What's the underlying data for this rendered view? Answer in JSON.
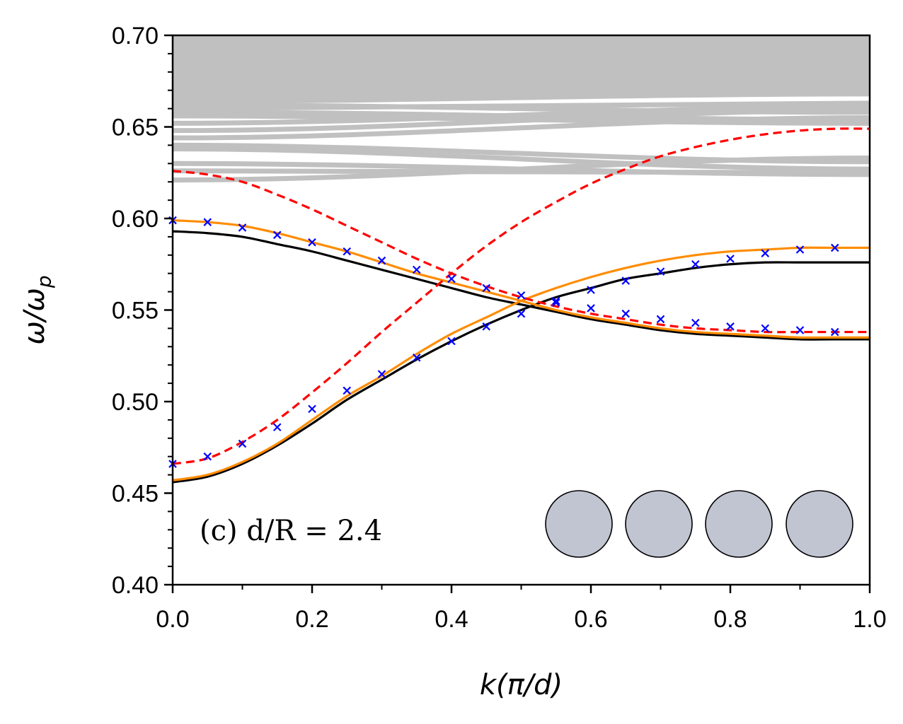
{
  "chart_data": {
    "type": "line",
    "title": "",
    "xlabel": "k(π/d)",
    "ylabel": "ω/ω_p",
    "ylabel_main": "ω/ω",
    "ylabel_sub": "p",
    "xlim": [
      0.0,
      1.0
    ],
    "ylim": [
      0.4,
      0.7
    ],
    "x_ticks": [
      "0.0",
      "0.2",
      "0.4",
      "0.6",
      "0.8",
      "1.0"
    ],
    "y_ticks": [
      "0.40",
      "0.45",
      "0.50",
      "0.55",
      "0.60",
      "0.65",
      "0.70"
    ],
    "x_tick_values": [
      0.0,
      0.2,
      0.4,
      0.6,
      0.8,
      1.0
    ],
    "y_tick_values": [
      0.4,
      0.45,
      0.5,
      0.55,
      0.6,
      0.65,
      0.7
    ],
    "annotation": "(c) d/R = 2.4",
    "grid": false,
    "background_bands": {
      "color": "#c0c0c0",
      "ymin": 0.618,
      "ymax": 0.7,
      "dense_above": 0.667,
      "band_lines": [
        {
          "start": 0.621,
          "end": 0.633
        },
        {
          "start": 0.626,
          "end": 0.625
        },
        {
          "start": 0.63,
          "end": 0.624
        },
        {
          "start": 0.64,
          "end": 0.631
        },
        {
          "start": 0.638,
          "end": 0.627
        },
        {
          "start": 0.644,
          "end": 0.655
        },
        {
          "start": 0.648,
          "end": 0.659
        },
        {
          "start": 0.652,
          "end": 0.661
        },
        {
          "start": 0.656,
          "end": 0.652
        },
        {
          "start": 0.658,
          "end": 0.654
        },
        {
          "start": 0.66,
          "end": 0.663
        },
        {
          "start": 0.662,
          "end": 0.658
        },
        {
          "start": 0.664,
          "end": 0.668
        },
        {
          "start": 0.666,
          "end": 0.67
        }
      ]
    },
    "series": [
      {
        "name": "black-lower",
        "style": "solid",
        "color": "#000000",
        "x": [
          0,
          0.05,
          0.1,
          0.15,
          0.2,
          0.25,
          0.3,
          0.35,
          0.4,
          0.45,
          0.5,
          0.55,
          0.6,
          0.65,
          0.7,
          0.75,
          0.8,
          0.85,
          0.9,
          0.95,
          1.0
        ],
        "y": [
          0.456,
          0.459,
          0.466,
          0.476,
          0.488,
          0.501,
          0.512,
          0.523,
          0.533,
          0.542,
          0.55,
          0.557,
          0.562,
          0.567,
          0.57,
          0.573,
          0.575,
          0.576,
          0.576,
          0.576,
          0.576
        ]
      },
      {
        "name": "black-upper",
        "style": "solid",
        "color": "#000000",
        "x": [
          0,
          0.05,
          0.1,
          0.15,
          0.2,
          0.25,
          0.3,
          0.35,
          0.4,
          0.45,
          0.5,
          0.55,
          0.6,
          0.65,
          0.7,
          0.75,
          0.8,
          0.85,
          0.9,
          0.95,
          1.0
        ],
        "y": [
          0.593,
          0.592,
          0.59,
          0.586,
          0.582,
          0.577,
          0.572,
          0.567,
          0.562,
          0.557,
          0.553,
          0.549,
          0.545,
          0.542,
          0.539,
          0.537,
          0.536,
          0.535,
          0.534,
          0.534,
          0.534
        ]
      },
      {
        "name": "orange-lower",
        "style": "solid",
        "color": "#ff8c00",
        "x": [
          0,
          0.05,
          0.1,
          0.15,
          0.2,
          0.25,
          0.3,
          0.35,
          0.4,
          0.45,
          0.5,
          0.55,
          0.6,
          0.65,
          0.7,
          0.75,
          0.8,
          0.85,
          0.9,
          0.95,
          1.0
        ],
        "y": [
          0.457,
          0.46,
          0.467,
          0.477,
          0.49,
          0.503,
          0.514,
          0.526,
          0.537,
          0.546,
          0.555,
          0.562,
          0.568,
          0.573,
          0.577,
          0.58,
          0.582,
          0.583,
          0.584,
          0.584,
          0.584
        ]
      },
      {
        "name": "orange-upper",
        "style": "solid",
        "color": "#ff8c00",
        "x": [
          0,
          0.05,
          0.1,
          0.15,
          0.2,
          0.25,
          0.3,
          0.35,
          0.4,
          0.45,
          0.5,
          0.55,
          0.6,
          0.65,
          0.7,
          0.75,
          0.8,
          0.85,
          0.9,
          0.95,
          1.0
        ],
        "y": [
          0.599,
          0.598,
          0.596,
          0.592,
          0.587,
          0.582,
          0.576,
          0.57,
          0.565,
          0.56,
          0.555,
          0.55,
          0.546,
          0.543,
          0.54,
          0.538,
          0.537,
          0.536,
          0.535,
          0.535,
          0.535
        ]
      },
      {
        "name": "red-dashed-lower",
        "style": "dashed",
        "color": "#ff0000",
        "x": [
          0,
          0.05,
          0.1,
          0.15,
          0.2,
          0.25,
          0.3,
          0.35,
          0.4,
          0.45,
          0.5,
          0.55,
          0.6,
          0.65,
          0.7,
          0.75,
          0.8,
          0.85,
          0.9,
          0.95,
          1.0
        ],
        "y": [
          0.466,
          0.469,
          0.478,
          0.49,
          0.505,
          0.521,
          0.538,
          0.554,
          0.57,
          0.585,
          0.598,
          0.609,
          0.619,
          0.627,
          0.634,
          0.639,
          0.643,
          0.646,
          0.648,
          0.649,
          0.649
        ]
      },
      {
        "name": "red-dashed-upper",
        "style": "dashed",
        "color": "#ff0000",
        "x": [
          0,
          0.05,
          0.1,
          0.15,
          0.2,
          0.25,
          0.3,
          0.35,
          0.4,
          0.45,
          0.5,
          0.55,
          0.6,
          0.65,
          0.7,
          0.75,
          0.8,
          0.85,
          0.9,
          0.95,
          1.0
        ],
        "y": [
          0.626,
          0.624,
          0.62,
          0.613,
          0.605,
          0.596,
          0.587,
          0.578,
          0.57,
          0.563,
          0.557,
          0.552,
          0.548,
          0.545,
          0.542,
          0.54,
          0.539,
          0.538,
          0.538,
          0.538,
          0.538
        ]
      },
      {
        "name": "blue-markers-lower",
        "style": "markers",
        "marker": "x",
        "color": "#0000ff",
        "x": [
          0.0,
          0.05,
          0.1,
          0.15,
          0.2,
          0.25,
          0.3,
          0.35,
          0.4,
          0.45,
          0.5,
          0.55,
          0.6,
          0.65,
          0.7,
          0.75,
          0.8,
          0.85,
          0.9,
          0.95
        ],
        "y": [
          0.466,
          0.47,
          0.477,
          0.486,
          0.496,
          0.506,
          0.515,
          0.524,
          0.533,
          0.541,
          0.548,
          0.554,
          0.561,
          0.566,
          0.571,
          0.575,
          0.578,
          0.581,
          0.583,
          0.584
        ]
      },
      {
        "name": "blue-markers-upper",
        "style": "markers",
        "marker": "x",
        "color": "#0000ff",
        "x": [
          0.0,
          0.05,
          0.1,
          0.15,
          0.2,
          0.25,
          0.3,
          0.35,
          0.4,
          0.45,
          0.5,
          0.55,
          0.6,
          0.65,
          0.7,
          0.75,
          0.8,
          0.85,
          0.9,
          0.95
        ],
        "y": [
          0.599,
          0.598,
          0.595,
          0.591,
          0.587,
          0.582,
          0.577,
          0.572,
          0.567,
          0.562,
          0.558,
          0.555,
          0.551,
          0.548,
          0.545,
          0.543,
          0.541,
          0.54,
          0.539,
          0.538
        ]
      }
    ],
    "inset": {
      "shape": "circles",
      "count": 4,
      "fill": "#c1c5d2",
      "stroke": "#000000"
    }
  }
}
